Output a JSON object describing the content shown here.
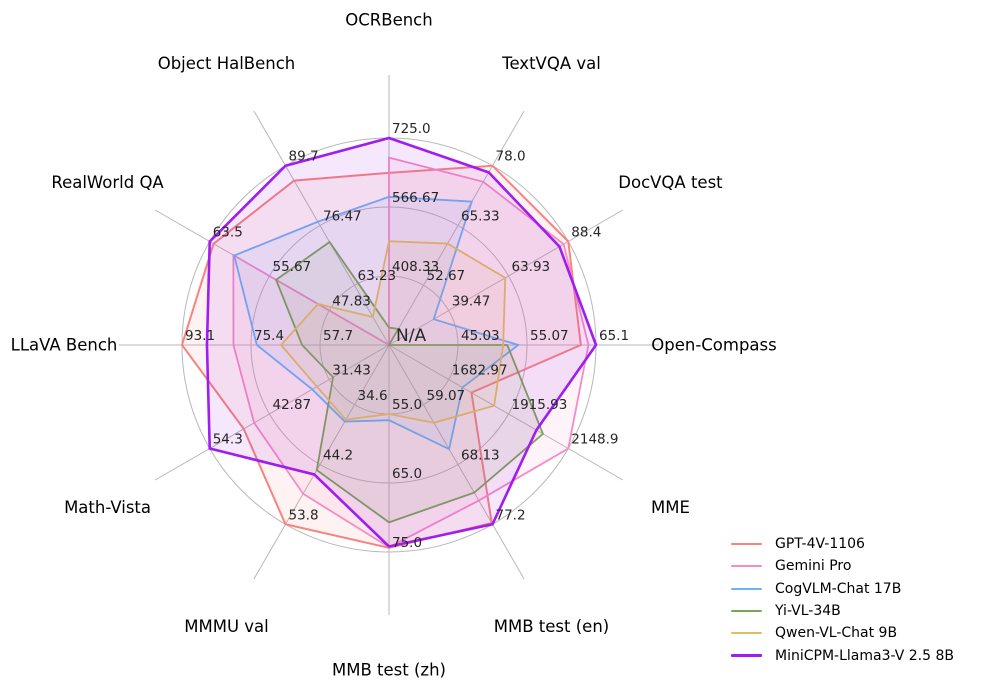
{
  "chart_data": {
    "type": "radar",
    "center_label": "N/A",
    "grid": "on",
    "legend_position": "bottom-right",
    "axes": [
      {
        "label": "OCRBench",
        "min": 250,
        "max": 725,
        "ticks": [
          "408.33",
          "566.67",
          "725.0"
        ]
      },
      {
        "label": "TextVQA val",
        "min": 40,
        "max": 78,
        "ticks": [
          "52.67",
          "65.33",
          "78.0"
        ]
      },
      {
        "label": "DocVQA test",
        "min": 15,
        "max": 88.4,
        "ticks": [
          "39.47",
          "63.93",
          "88.4"
        ]
      },
      {
        "label": "Open-Compass",
        "min": 35,
        "max": 65.1,
        "ticks": [
          "45.03",
          "55.07",
          "65.1"
        ]
      },
      {
        "label": "MME",
        "min": 1450,
        "max": 2148.9,
        "ticks": [
          "1682.97",
          "1915.93",
          "2148.9"
        ]
      },
      {
        "label": "MMB test (en)",
        "min": 50,
        "max": 77.2,
        "ticks": [
          "59.07",
          "68.13",
          "77.2"
        ]
      },
      {
        "label": "MMB test (zh)",
        "min": 45,
        "max": 75,
        "ticks": [
          "55.0",
          "65.0",
          "75.0"
        ]
      },
      {
        "label": "MMMU val",
        "min": 25,
        "max": 53.8,
        "ticks": [
          "34.6",
          "44.2",
          "53.8"
        ]
      },
      {
        "label": "Math-Vista",
        "min": 20,
        "max": 54.3,
        "ticks": [
          "31.43",
          "42.87",
          "54.3"
        ]
      },
      {
        "label": "LLaVA Bench",
        "min": 40,
        "max": 93.1,
        "ticks": [
          "57.7",
          "75.4",
          "93.1"
        ]
      },
      {
        "label": "RealWorld QA",
        "min": 40,
        "max": 63.5,
        "ticks": [
          "47.83",
          "55.67",
          "63.5"
        ]
      },
      {
        "label": "Object HalBench",
        "min": 50,
        "max": 89.7,
        "ticks": [
          "63.23",
          "76.47",
          "89.7"
        ]
      }
    ],
    "series": [
      {
        "name": "GPT-4V-1106",
        "color": "#f8837e",
        "line_width": 2.0,
        "values": [
          645,
          78.0,
          88.4,
          62.9,
          1771.5,
          77.0,
          74.4,
          53.8,
          47.8,
          93.1,
          63.0,
          86.4
        ]
      },
      {
        "name": "Gemini Pro",
        "color": "#f78bc5",
        "line_width": 1.8,
        "values": [
          680,
          74.6,
          86.5,
          64.0,
          2148.9,
          73.6,
          74.3,
          48.9,
          45.8,
          79.9,
          60.4,
          null
        ]
      },
      {
        "name": "CogVLM-Chat 17B",
        "color": "#6fb1f2",
        "line_width": 1.8,
        "values": [
          590,
          70.4,
          33.3,
          53.8,
          1736.6,
          65.8,
          55.9,
          37.3,
          34.7,
          73.9,
          60.3,
          77.3
        ]
      },
      {
        "name": "Yi-VL-34B",
        "color": "#7da356",
        "line_width": 1.8,
        "values": [
          290,
          43.4,
          null,
          52.2,
          2050.2,
          72.4,
          70.7,
          45.1,
          30.7,
          62.3,
          54.8,
          72.8
        ]
      },
      {
        "name": "Qwen-VL-Chat 9B",
        "color": "#e3bd60",
        "line_width": 1.8,
        "values": [
          488,
          61.5,
          62.6,
          51.6,
          1860.0,
          61.8,
          55.0,
          37.0,
          33.8,
          67.7,
          49.3,
          56.2
        ]
      },
      {
        "name": "MiniCPM-Llama3-V 2.5 8B",
        "color": "#a01df0",
        "line_width": 2.6,
        "values": [
          725,
          76.6,
          84.8,
          65.1,
          2024.6,
          77.2,
          74.2,
          45.8,
          54.3,
          86.7,
          63.5,
          89.7
        ]
      }
    ],
    "style": {
      "grid_color": "#b8b8b8",
      "fill_opacity": 0.1,
      "ring_count": 3
    }
  }
}
